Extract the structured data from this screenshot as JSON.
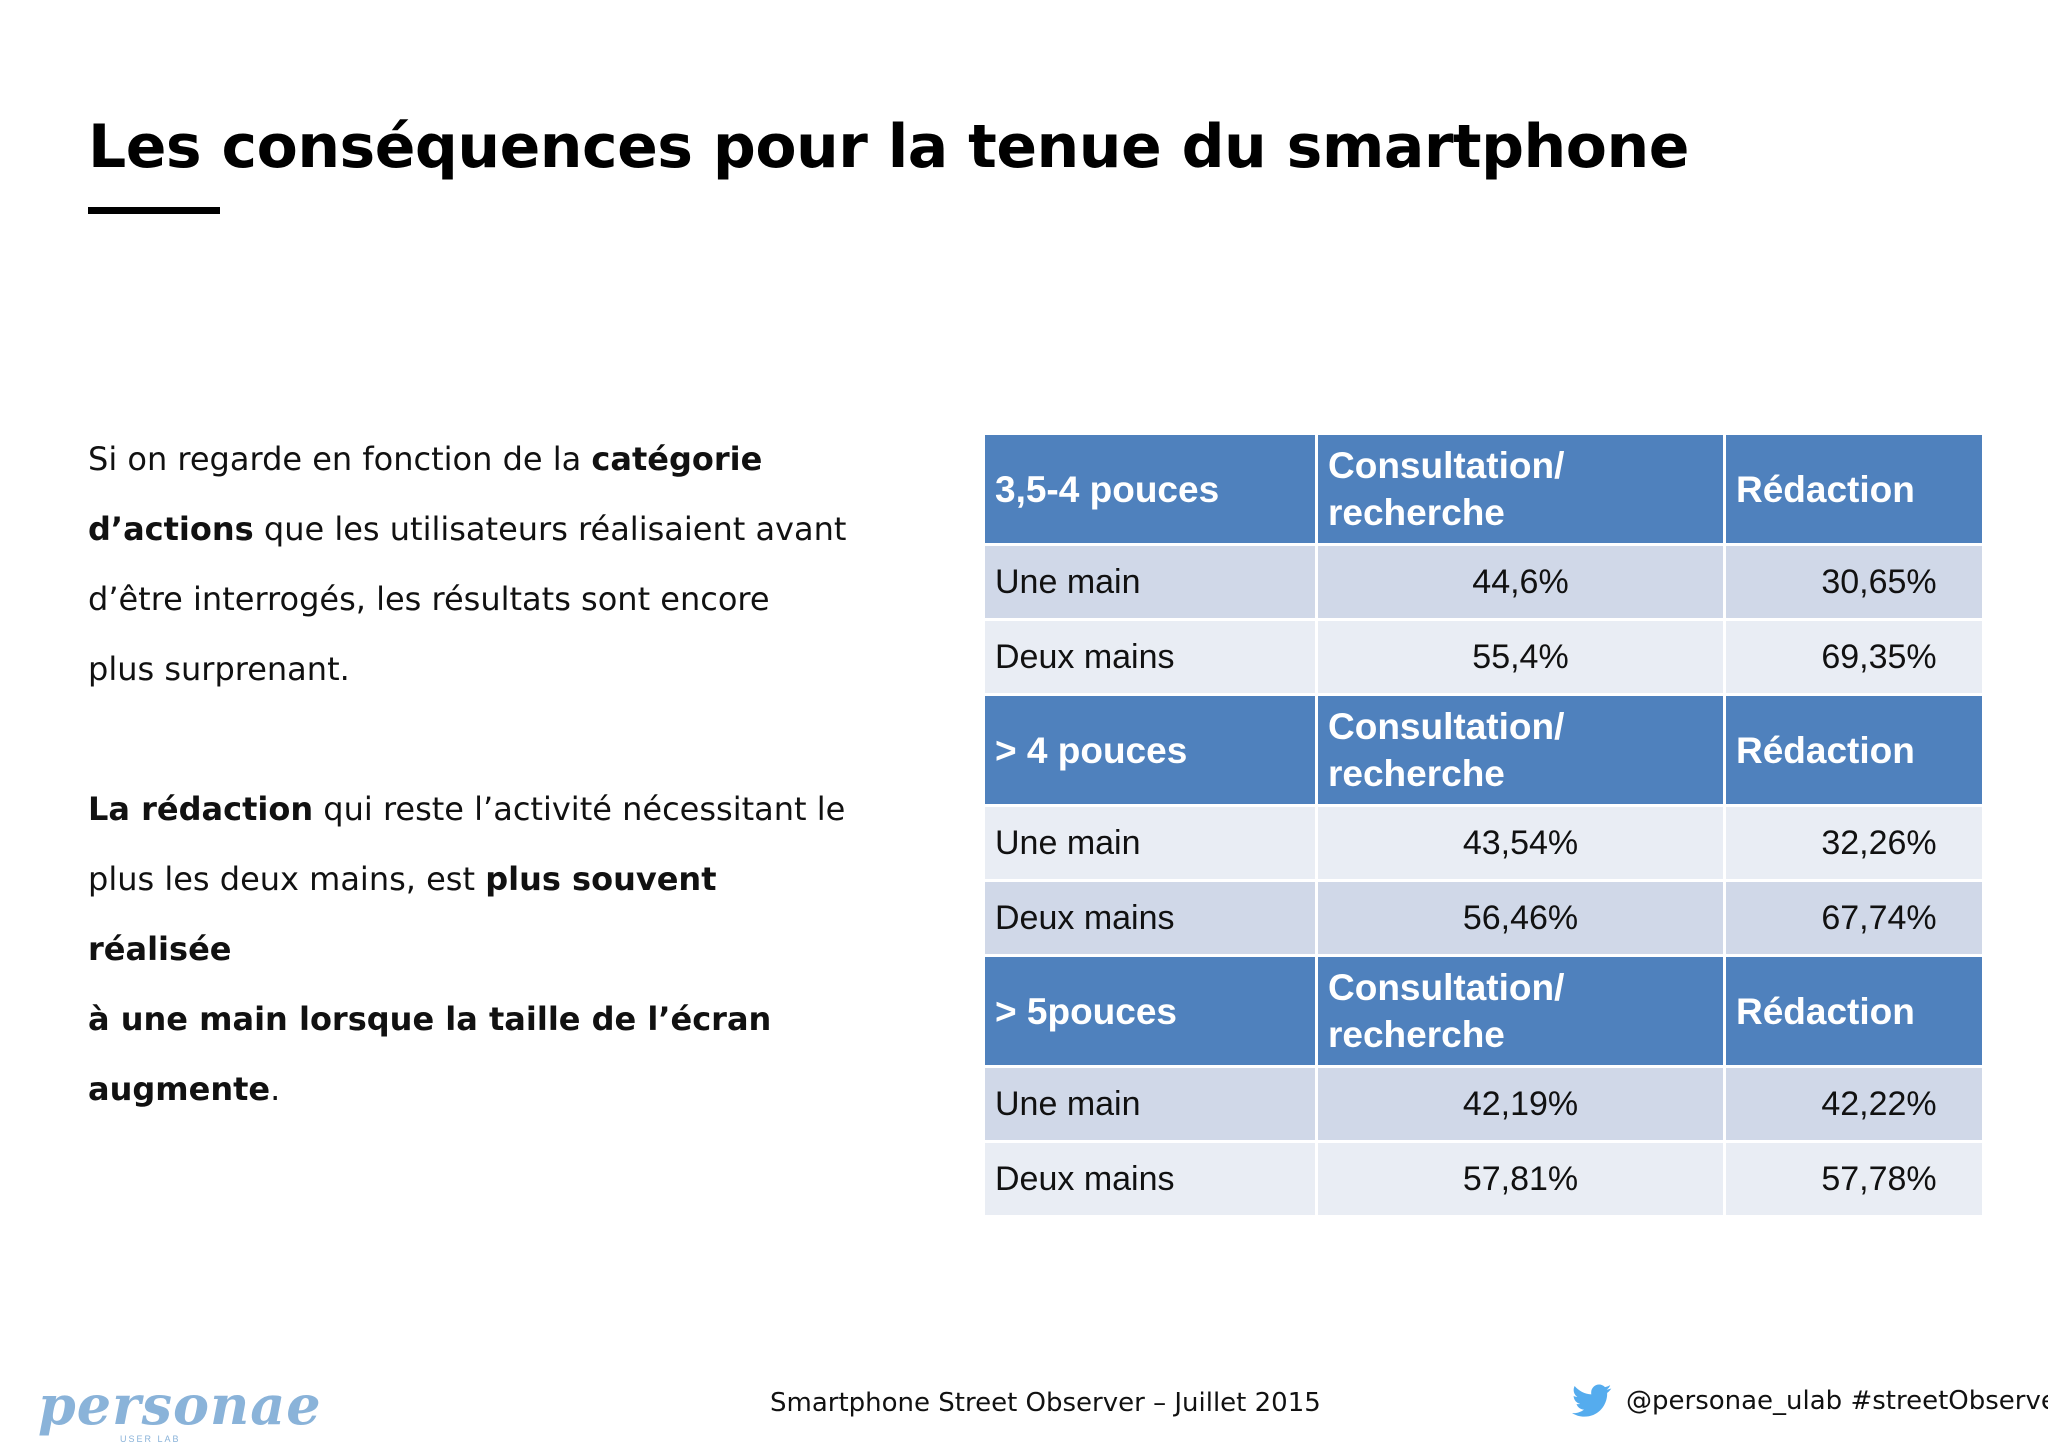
{
  "slide": {
    "title": "Les conséquences pour la tenue du smartphone",
    "paragraph1": {
      "t1": "Si on regarde en fonction de la ",
      "b1": "catégorie",
      "b2": "d’actions",
      "t2": " que les utilisateurs réalisaient avant",
      "t3": "d’être interrogés, les résultats sont encore",
      "t4": "plus  surprenant."
    },
    "paragraph2": {
      "b1": "La rédaction",
      "t1": " qui reste l’activité nécessitant le",
      "t2": "plus les deux mains, est ",
      "b2": "plus souvent réalisée",
      "b3": "à une main lorsque la taille de l’écran",
      "b4": "augmente",
      "t3": "."
    }
  },
  "table": {
    "groups": [
      {
        "header": [
          "3,5-4 pouces",
          "Consultation/ recherche",
          "Rédaction"
        ],
        "rows": [
          [
            "Une main",
            "44,6%",
            "30,65%"
          ],
          [
            "Deux mains",
            "55,4%",
            "69,35%"
          ]
        ]
      },
      {
        "header": [
          "> 4 pouces",
          "Consultation/ recherche",
          "Rédaction"
        ],
        "rows": [
          [
            "Une main",
            "43,54%",
            "32,26%"
          ],
          [
            "Deux mains",
            "56,46%",
            "67,74%"
          ]
        ]
      },
      {
        "header": [
          "> 5pouces",
          "Consultation/ recherche",
          "Rédaction"
        ],
        "rows": [
          [
            "Une main",
            "42,19%",
            "42,22%"
          ],
          [
            "Deux mains",
            "57,81%",
            "57,78%"
          ]
        ]
      }
    ]
  },
  "footer": {
    "logo_text": "personae",
    "logo_sub": "USER LAB",
    "center": "Smartphone Street Observer – Juillet 2015",
    "right": "@personae_ulab #streetObserver",
    "right_icon": "twitter-bird-icon"
  },
  "colors": {
    "header_blue": "#4f81bd",
    "row_dark": "#d0d8e8",
    "row_light": "#e9edf4",
    "logo": "#8ab3d9",
    "twitter": "#55acee"
  }
}
